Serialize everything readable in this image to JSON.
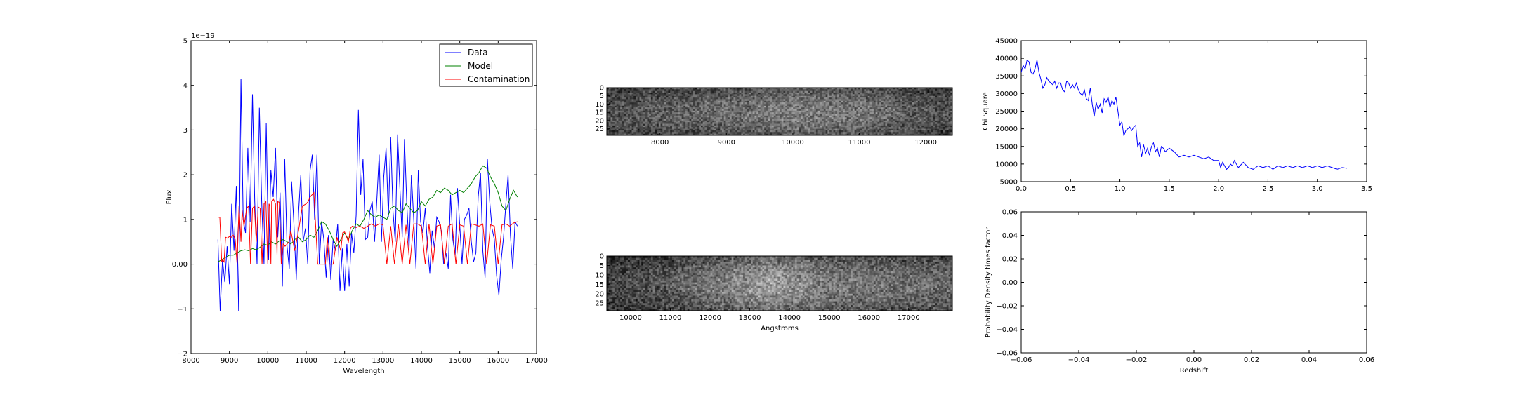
{
  "chart_data": [
    {
      "id": "spectrum",
      "type": "line",
      "title": "",
      "xlabel": "Wavelength",
      "ylabel": "Flux",
      "offset_text": "1e−19",
      "xlim": [
        8000,
        17000
      ],
      "ylim": [
        -2,
        5
      ],
      "xticks": [
        8000,
        9000,
        10000,
        11000,
        12000,
        13000,
        14000,
        15000,
        16000,
        17000
      ],
      "yticks": [
        -2,
        -1,
        0,
        1,
        2,
        3,
        4,
        5
      ],
      "legend": {
        "placement": "top-right",
        "entries": [
          "Data",
          "Model",
          "Contamination"
        ]
      },
      "series": [
        {
          "name": "Data",
          "color": "#0000ff",
          "x": [
            8700,
            8760,
            8820,
            8880,
            8940,
            9000,
            9060,
            9120,
            9180,
            9240,
            9300,
            9360,
            9420,
            9480,
            9540,
            9600,
            9660,
            9720,
            9780,
            9840,
            9900,
            9960,
            10020,
            10080,
            10140,
            10200,
            10260,
            10320,
            10380,
            10440,
            10500,
            10560,
            10620,
            10680,
            10740,
            10800,
            10860,
            10920,
            10980,
            11040,
            11100,
            11160,
            11220,
            11280,
            11340,
            11400,
            11460,
            11520,
            11580,
            11640,
            11700,
            11760,
            11820,
            11880,
            11940,
            12000,
            12060,
            12120,
            12180,
            12240,
            12300,
            12360,
            12420,
            12480,
            12540,
            12600,
            12660,
            12720,
            12780,
            12840,
            12900,
            12960,
            13020,
            13080,
            13140,
            13200,
            13260,
            13320,
            13380,
            13440,
            13500,
            13560,
            13620,
            13680,
            13740,
            13800,
            13860,
            13920,
            13980,
            14040,
            14100,
            14160,
            14220,
            14280,
            14340,
            14400,
            14460,
            14520,
            14580,
            14640,
            14700,
            14760,
            14820,
            14880,
            14940,
            15000,
            15060,
            15120,
            15180,
            15240,
            15300,
            15360,
            15420,
            15480,
            15540,
            15600,
            15660,
            15720,
            15780,
            15840,
            15900,
            15960,
            16020,
            16080,
            16140,
            16200,
            16260,
            16320,
            16380,
            16440,
            16500
          ],
          "y": [
            0.55,
            -1.05,
            0.1,
            -0.4,
            0.4,
            -0.45,
            1.35,
            0.3,
            1.75,
            -1.05,
            4.15,
            1.0,
            0.7,
            2.6,
            0.95,
            3.8,
            1.4,
            0.0,
            3.5,
            1.4,
            0.0,
            3.15,
            0.1,
            2.1,
            1.5,
            2.6,
            0.6,
            1.6,
            -0.5,
            2.35,
            0.4,
            -0.1,
            1.85,
            0.9,
            -0.35,
            1.15,
            2.0,
            0.5,
            0.8,
            0.0,
            2.1,
            2.45,
            1.0,
            2.45,
            0.0,
            0.95,
            0.55,
            -0.3,
            0.65,
            -0.35,
            0.55,
            0.3,
            0.9,
            -0.6,
            0.35,
            -0.6,
            0.45,
            -0.5,
            0.7,
            0.25,
            1.1,
            3.45,
            1.55,
            2.35,
            0.55,
            0.6,
            1.2,
            1.4,
            0.5,
            1.45,
            2.45,
            0.5,
            1.95,
            2.6,
            1.05,
            2.85,
            1.2,
            0.5,
            2.9,
            1.7,
            0.6,
            2.8,
            1.35,
            0.35,
            2.0,
            1.0,
            -0.1,
            2.1,
            0.95,
            0.7,
            1.25,
            0.4,
            -0.2,
            0.75,
            0.35,
            1.05,
            0.95,
            0.75,
            0.0,
            0.25,
            -0.1,
            1.55,
            0.55,
            0.2,
            1.7,
            0.85,
            0.0,
            1.0,
            1.1,
            1.25,
            0.5,
            0.05,
            0.25,
            1.5,
            2.05,
            0.3,
            -0.3,
            2.35,
            1.4,
            0.8,
            0.55,
            -0.25,
            -0.7,
            0.1,
            0.6,
            1.35,
            2.0,
            0.65,
            -0.1,
            0.95,
            0.85
          ]
        },
        {
          "name": "Model",
          "color": "#008000",
          "x": [
            8700,
            8800,
            8900,
            9000,
            9100,
            9200,
            9300,
            9400,
            9500,
            9600,
            9700,
            9800,
            9900,
            10000,
            10100,
            10200,
            10300,
            10400,
            10500,
            10600,
            10700,
            10800,
            10900,
            11000,
            11100,
            11200,
            11300,
            11400,
            11500,
            11600,
            11700,
            11800,
            11900,
            12000,
            12100,
            12200,
            12300,
            12400,
            12500,
            12600,
            12700,
            12800,
            12900,
            13000,
            13100,
            13200,
            13300,
            13400,
            13500,
            13600,
            13700,
            13800,
            13900,
            14000,
            14100,
            14200,
            14300,
            14400,
            14500,
            14600,
            14700,
            14800,
            14900,
            15000,
            15100,
            15200,
            15300,
            15400,
            15500,
            15600,
            15700,
            15800,
            15900,
            16000,
            16100,
            16200,
            16300,
            16400,
            16500
          ],
          "y": [
            0.05,
            0.1,
            0.15,
            0.2,
            0.2,
            0.25,
            0.3,
            0.32,
            0.3,
            0.35,
            0.32,
            0.38,
            0.45,
            0.42,
            0.5,
            0.45,
            0.52,
            0.55,
            0.5,
            0.45,
            0.55,
            0.6,
            0.5,
            0.55,
            0.65,
            0.6,
            0.75,
            0.95,
            0.9,
            0.75,
            0.55,
            0.4,
            0.55,
            0.7,
            0.55,
            0.75,
            0.9,
            0.85,
            1.0,
            1.2,
            1.1,
            1.05,
            1.1,
            1.05,
            1.0,
            1.25,
            1.3,
            1.2,
            1.15,
            1.35,
            1.25,
            1.15,
            1.2,
            1.4,
            1.3,
            1.45,
            1.5,
            1.65,
            1.6,
            1.7,
            1.65,
            1.55,
            1.6,
            1.65,
            1.6,
            1.7,
            1.8,
            1.95,
            2.05,
            2.2,
            2.15,
            1.95,
            1.8,
            1.6,
            1.3,
            1.2,
            1.45,
            1.65,
            1.5
          ]
        },
        {
          "name": "Contamination",
          "color": "#ff0000",
          "x": [
            8700,
            8750,
            8800,
            8820,
            8860,
            8900,
            8950,
            9000,
            9050,
            9100,
            9150,
            9200,
            9250,
            9300,
            9330,
            9380,
            9450,
            9500,
            9550,
            9600,
            9650,
            9700,
            9750,
            9800,
            9850,
            9900,
            9950,
            10000,
            10030,
            10050,
            10080,
            10100,
            10150,
            10200,
            10240,
            10260,
            10300,
            10350,
            10400,
            10450,
            10500,
            10550,
            10600,
            10700,
            10800,
            10900,
            11000,
            11050,
            11100,
            11150,
            11200,
            11300,
            11400,
            11500,
            11550,
            11600,
            11700,
            11800,
            11900,
            11950,
            12000,
            12100,
            12150,
            12200,
            12300,
            12400,
            12500,
            12600,
            12700,
            12800,
            12900,
            13000,
            13100,
            13200,
            13300,
            13400,
            13500,
            13600,
            13700,
            13800,
            13900,
            14000,
            14100,
            14200,
            14300,
            14400,
            14500,
            14600,
            14700,
            14800,
            14900,
            15000,
            15100,
            15200,
            15300,
            15400,
            15500,
            15600,
            15700,
            15800,
            15900,
            16000,
            16100,
            16200,
            16300,
            16400,
            16500
          ],
          "y": [
            1.05,
            1.05,
            0.05,
            0.1,
            0.05,
            0.6,
            0.58,
            0.62,
            0.6,
            0.65,
            0.55,
            0.0,
            1.3,
            0.5,
            1.2,
            0.85,
            1.25,
            1.3,
            0.0,
            1.25,
            1.3,
            0.5,
            1.28,
            1.25,
            0.0,
            1.35,
            1.4,
            0.0,
            1.35,
            1.3,
            0.0,
            1.4,
            1.45,
            1.35,
            0.2,
            1.4,
            1.38,
            0.0,
            0.45,
            0.4,
            0.45,
            0.5,
            0.75,
            0.3,
            0.75,
            1.3,
            1.35,
            1.4,
            1.5,
            1.55,
            1.6,
            0.0,
            0.0,
            0.0,
            0.6,
            0.0,
            0.0,
            0.6,
            0.3,
            0.7,
            0.72,
            0.5,
            0.8,
            0.85,
            0.82,
            0.85,
            0.8,
            0.85,
            0.9,
            0.85,
            0.9,
            0.88,
            0.0,
            0.85,
            0.0,
            0.9,
            0.0,
            0.88,
            0.0,
            0.9,
            0.9,
            0.85,
            0.0,
            0.9,
            0.0,
            0.85,
            0.88,
            0.0,
            0.85,
            0.9,
            0.0,
            0.88,
            0.85,
            0.0,
            0.9,
            0.88,
            0.85,
            0.9,
            0.0,
            0.88,
            0.85,
            0.0,
            0.88,
            0.9,
            0.85,
            0.92,
            0.95
          ]
        }
      ]
    },
    {
      "id": "image2d_top",
      "type": "heatmap",
      "title": "",
      "xlabel": "",
      "ylabel": "",
      "xlim": [
        7200,
        12400
      ],
      "ylim": [
        29,
        0
      ],
      "xticks": [
        8000,
        9000,
        10000,
        11000,
        12000
      ],
      "yticks": [
        0,
        5,
        10,
        15,
        20,
        25
      ],
      "colormap": "gray",
      "rows": 29,
      "cols": 180,
      "brightness_profile": {
        "x": [
          7200,
          9000,
          10000,
          11000,
          12400
        ],
        "level": [
          0.32,
          0.42,
          0.5,
          0.46,
          0.3
        ]
      },
      "seed": 7
    },
    {
      "id": "image2d_bottom",
      "type": "heatmap",
      "title": "",
      "xlabel": "Angstroms",
      "ylabel": "",
      "xlim": [
        9400,
        18100
      ],
      "ylim": [
        29,
        0
      ],
      "xticks": [
        10000,
        11000,
        12000,
        13000,
        14000,
        15000,
        16000,
        17000
      ],
      "yticks": [
        0,
        5,
        10,
        15,
        20,
        25
      ],
      "colormap": "gray",
      "rows": 29,
      "cols": 180,
      "brightness_profile": {
        "x": [
          9400,
          11000,
          13500,
          15000,
          17000,
          18100
        ],
        "level": [
          0.25,
          0.35,
          0.62,
          0.48,
          0.42,
          0.4
        ]
      },
      "seed": 13
    },
    {
      "id": "chisq",
      "type": "line",
      "title": "",
      "xlabel": "",
      "ylabel": "Chi Square",
      "xlim": [
        0.0,
        3.5
      ],
      "ylim": [
        5000,
        45000
      ],
      "xticks": [
        0.0,
        0.5,
        1.0,
        1.5,
        2.0,
        2.5,
        3.0,
        3.5
      ],
      "yticks": [
        5000,
        10000,
        15000,
        20000,
        25000,
        30000,
        35000,
        40000,
        45000
      ],
      "series": [
        {
          "color": "#0000ff",
          "x": [
            0.0,
            0.02,
            0.04,
            0.06,
            0.08,
            0.1,
            0.12,
            0.14,
            0.16,
            0.18,
            0.2,
            0.22,
            0.24,
            0.26,
            0.28,
            0.3,
            0.32,
            0.34,
            0.36,
            0.38,
            0.4,
            0.42,
            0.44,
            0.46,
            0.48,
            0.5,
            0.52,
            0.54,
            0.56,
            0.58,
            0.6,
            0.62,
            0.64,
            0.66,
            0.68,
            0.7,
            0.72,
            0.74,
            0.76,
            0.78,
            0.8,
            0.82,
            0.84,
            0.86,
            0.88,
            0.9,
            0.92,
            0.94,
            0.96,
            0.98,
            1.0,
            1.02,
            1.04,
            1.06,
            1.08,
            1.1,
            1.12,
            1.14,
            1.16,
            1.18,
            1.2,
            1.22,
            1.24,
            1.26,
            1.28,
            1.3,
            1.32,
            1.34,
            1.36,
            1.38,
            1.4,
            1.42,
            1.44,
            1.46,
            1.48,
            1.5,
            1.55,
            1.6,
            1.65,
            1.7,
            1.75,
            1.8,
            1.85,
            1.9,
            1.95,
            2.0,
            2.02,
            2.04,
            2.06,
            2.08,
            2.1,
            2.12,
            2.14,
            2.16,
            2.18,
            2.2,
            2.25,
            2.3,
            2.35,
            2.4,
            2.45,
            2.5,
            2.55,
            2.6,
            2.65,
            2.7,
            2.75,
            2.8,
            2.85,
            2.9,
            2.95,
            3.0,
            3.05,
            3.1,
            3.15,
            3.2,
            3.25,
            3.3
          ],
          "y": [
            36000,
            38000,
            37000,
            39500,
            39000,
            36000,
            35500,
            37000,
            39500,
            36000,
            34000,
            31500,
            32500,
            34500,
            33500,
            33000,
            32500,
            33500,
            31500,
            33000,
            33000,
            31000,
            30500,
            33500,
            33000,
            31500,
            32500,
            31500,
            33000,
            31000,
            30000,
            29500,
            31000,
            28500,
            28000,
            31500,
            27000,
            23500,
            27500,
            25500,
            27000,
            24500,
            28500,
            27500,
            29000,
            26000,
            28000,
            27000,
            29000,
            25000,
            21000,
            22000,
            18000,
            19500,
            20000,
            20500,
            19500,
            20500,
            21000,
            15000,
            16000,
            12000,
            15500,
            13000,
            14500,
            12500,
            15000,
            16000,
            13500,
            14500,
            12000,
            15000,
            14500,
            13500,
            14000,
            14500,
            13500,
            12000,
            12500,
            12000,
            12500,
            12000,
            11500,
            12000,
            11000,
            11000,
            9000,
            10500,
            9500,
            8500,
            9000,
            10000,
            9500,
            11000,
            10000,
            9000,
            10500,
            9000,
            8500,
            9500,
            9000,
            9500,
            8500,
            9500,
            9000,
            9500,
            9000,
            9500,
            9000,
            9500,
            9000,
            9500,
            9000,
            9500,
            9000,
            8500,
            9000,
            8800
          ]
        }
      ]
    },
    {
      "id": "pdf",
      "type": "line",
      "title": "",
      "xlabel": "Redshift",
      "ylabel": "Probability Density times factor",
      "xlim": [
        -0.06,
        0.06
      ],
      "ylim": [
        -0.06,
        0.06
      ],
      "xticks": [
        -0.06,
        -0.04,
        -0.02,
        0.0,
        0.02,
        0.04,
        0.06
      ],
      "yticks": [
        -0.06,
        -0.04,
        -0.02,
        0.0,
        0.02,
        0.04,
        0.06
      ],
      "series": []
    }
  ]
}
